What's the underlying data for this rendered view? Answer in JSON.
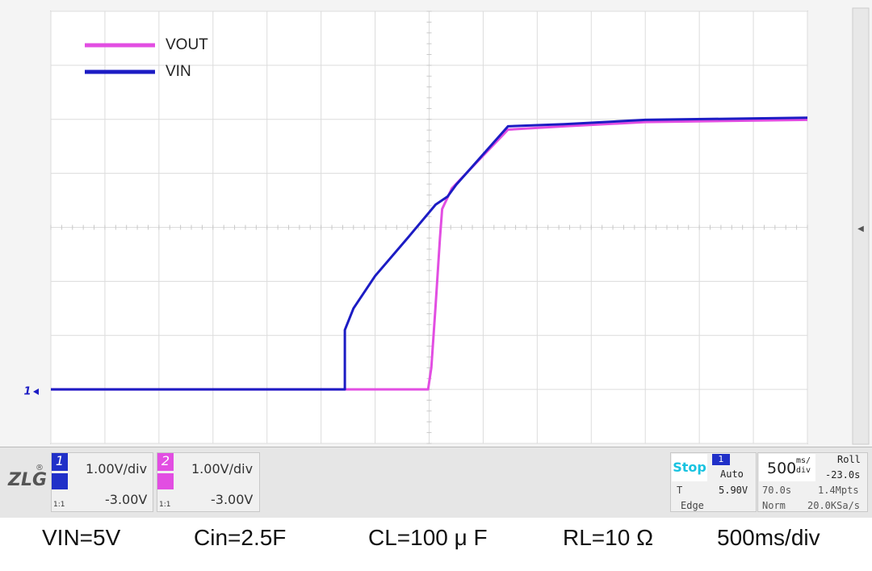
{
  "chart_data": {
    "type": "line",
    "series": [
      {
        "name": "VOUT",
        "color": "#e24ee2",
        "x": [
          0,
          3.49,
          3.52,
          3.56,
          3.6,
          3.62,
          3.71,
          4.23,
          4.75,
          5.5,
          7.0
        ],
        "values": [
          0,
          0,
          0.4,
          1.55,
          2.8,
          3.34,
          3.72,
          4.81,
          4.87,
          4.95,
          4.99
        ]
      },
      {
        "name": "VIN",
        "color": "#1c1cc4",
        "x": [
          0,
          2.72,
          2.72,
          2.8,
          3.0,
          3.3,
          3.56,
          3.67,
          3.75,
          4.23,
          4.75,
          5.5,
          7.0
        ],
        "values": [
          0,
          0,
          1.1,
          1.5,
          2.1,
          2.8,
          3.42,
          3.57,
          3.79,
          4.87,
          4.91,
          4.99,
          5.03
        ]
      }
    ],
    "xlim": [
      0,
      7
    ],
    "ylim": [
      -1,
      7
    ],
    "xticks": [
      0,
      0.5,
      1,
      1.5,
      2,
      2.5,
      3,
      3.5,
      4,
      4.5,
      5,
      5.5,
      6,
      6.5,
      7
    ],
    "yticks": [
      -1,
      0,
      1,
      2,
      3,
      4,
      5,
      6,
      7
    ],
    "grid": true,
    "legend": "top-left",
    "ground_marker": "1"
  },
  "scope_panel": {
    "logo": "ZLG",
    "ch1": {
      "number": "1",
      "scale": "1.00V/div",
      "offset": "-3.00V",
      "probe": "1:1"
    },
    "ch2": {
      "number": "2",
      "scale": "1.00V/div",
      "offset": "-3.00V",
      "probe": "1:1"
    },
    "run_state": "Stop",
    "trigger": {
      "source": "1",
      "mode": "Auto",
      "label": "T",
      "level": "5.90V",
      "type": "Edge"
    },
    "timebase": {
      "value": "500",
      "unit_top": "ms/",
      "unit_bottom": "div",
      "delay": "70.0s",
      "acq": "Norm"
    },
    "roll": {
      "label": "Roll",
      "position": "-23.0s",
      "memory": "1.4Mpts",
      "rate": "20.0KSa/s"
    }
  },
  "caption": [
    "VIN=5V",
    "Cin=2.5F",
    "CL=100 μ F",
    "RL=10 Ω",
    "500ms/div"
  ]
}
